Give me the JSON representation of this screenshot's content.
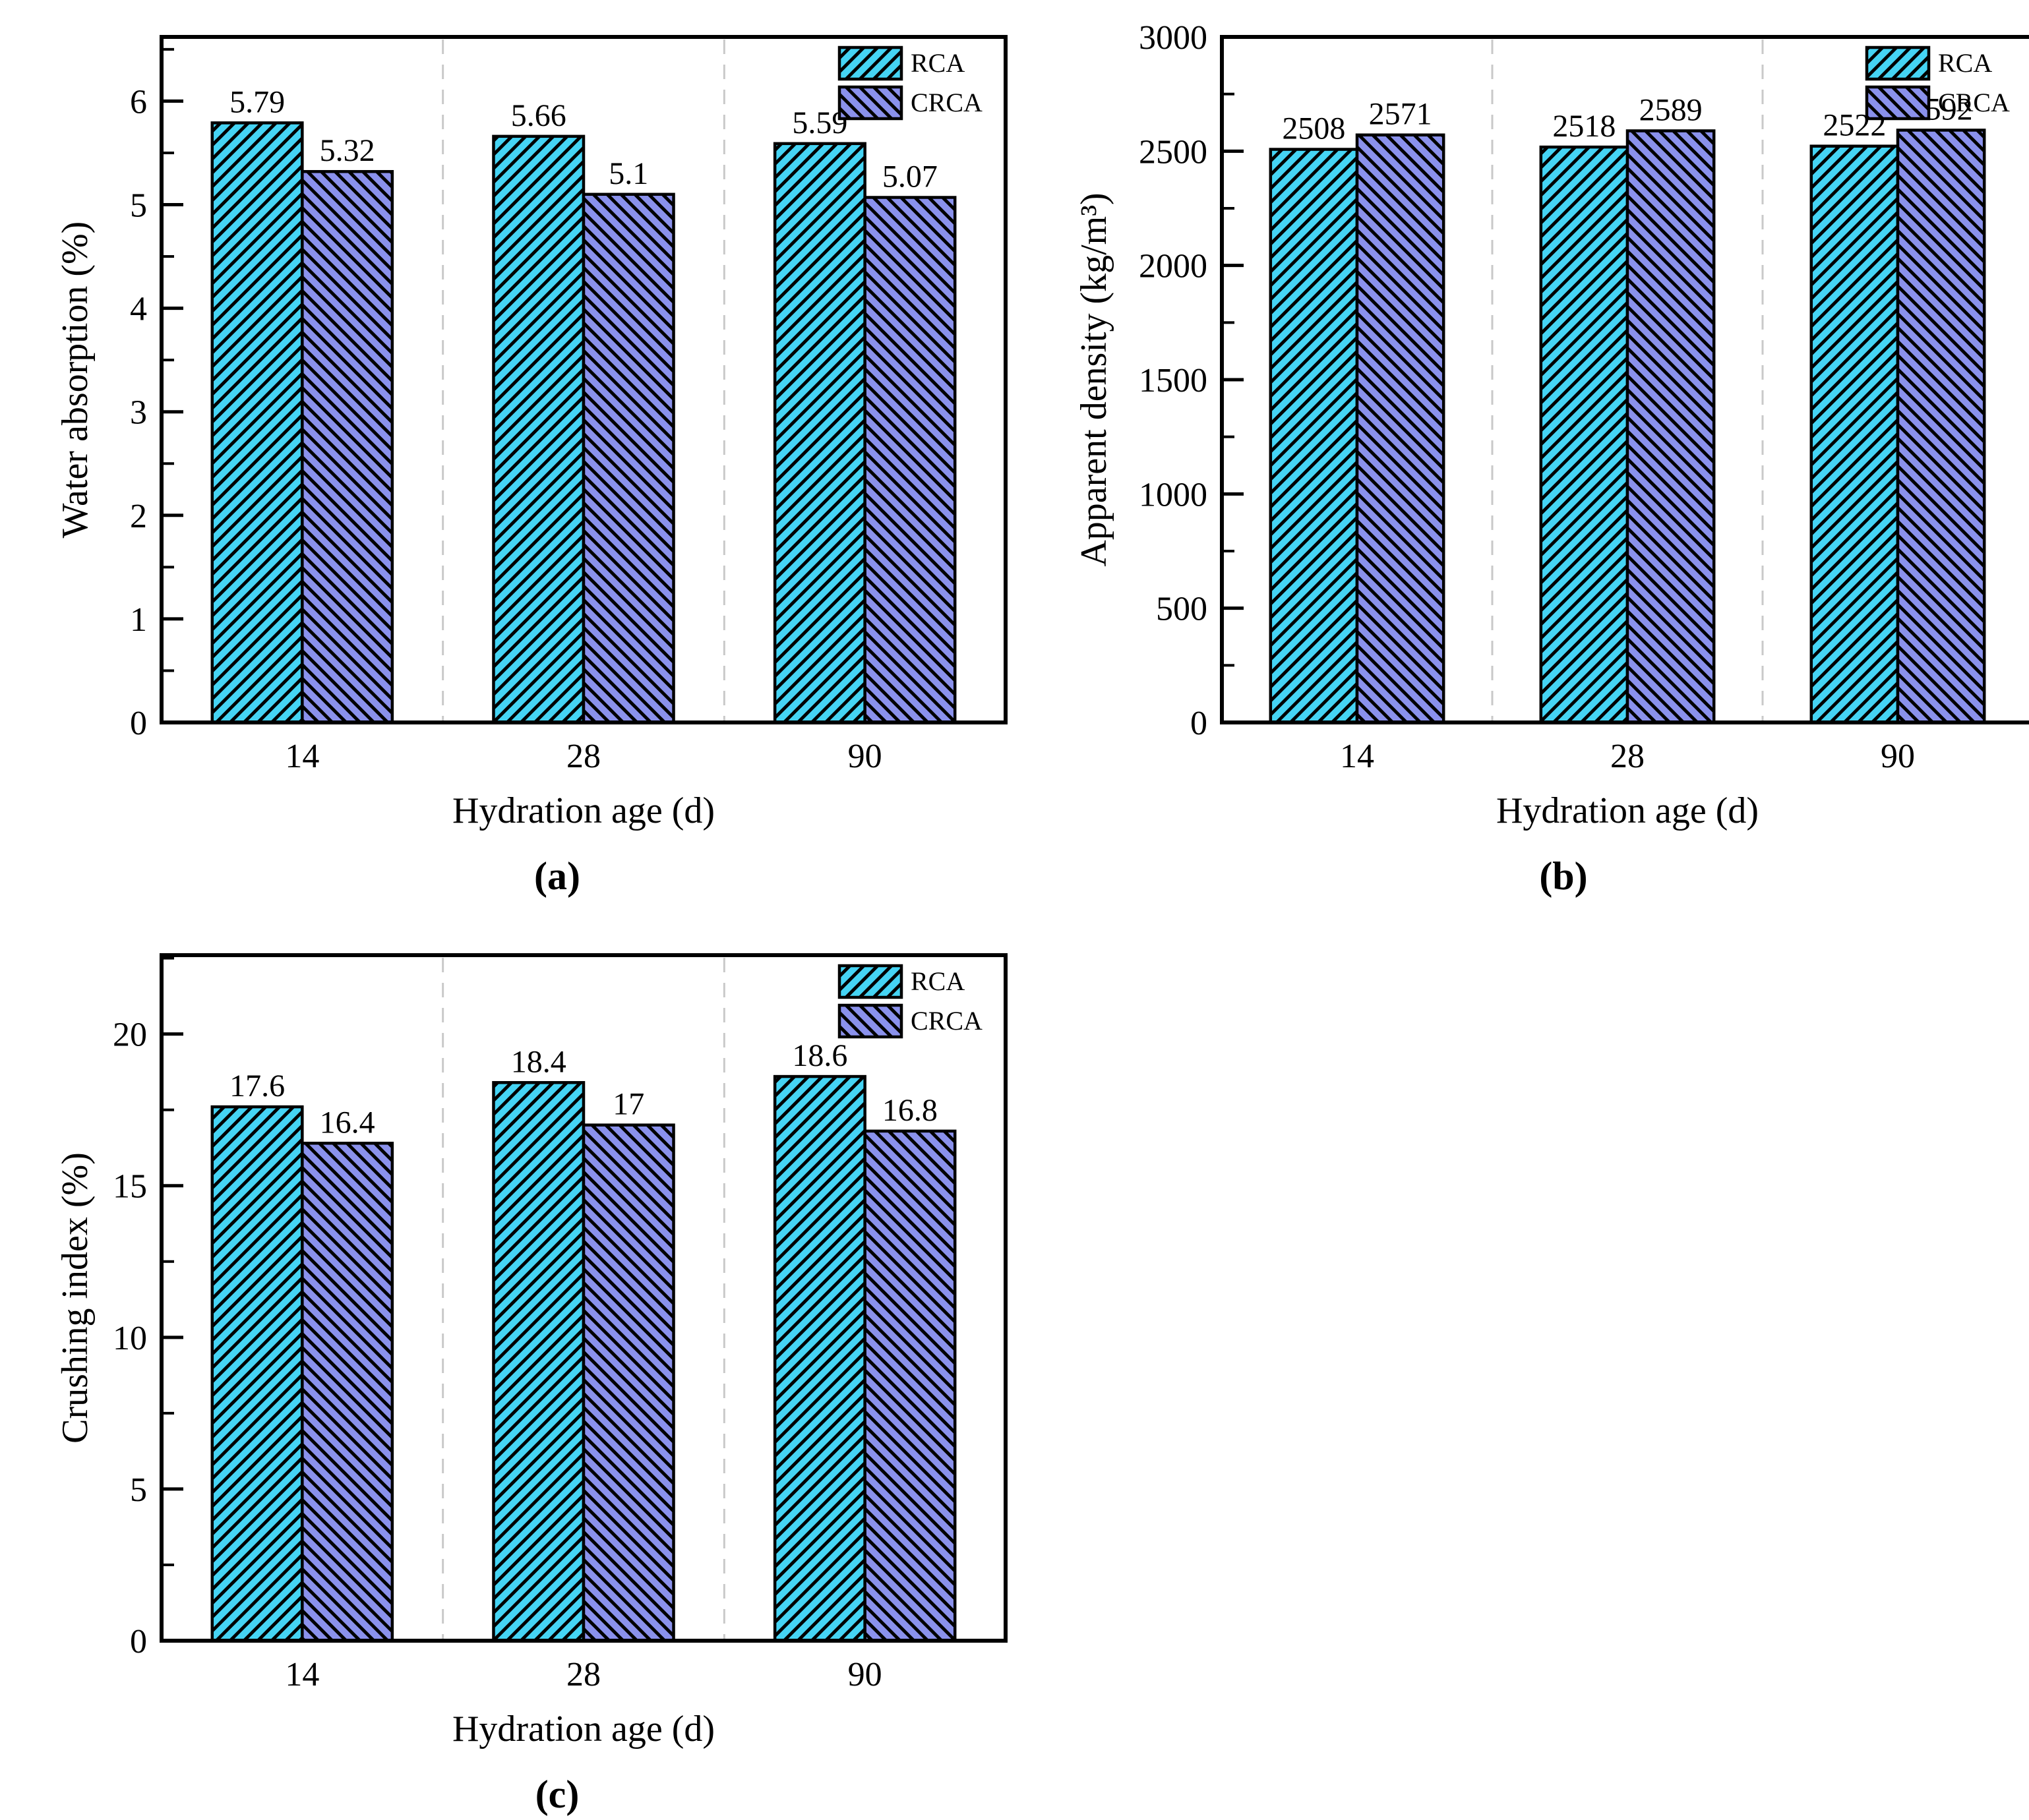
{
  "figure": {
    "background_color": "#FFFFFF",
    "series_colors": {
      "RCA": "#45D4F4",
      "CRCA": "#8A91EC"
    },
    "bar_edge_color": "#000000",
    "separator_color": "#C9C9C9",
    "separator_style": "dashed",
    "legend_position": "top-right"
  },
  "chart_data": [
    {
      "id": "water-absorption",
      "panel_label": "(a)",
      "type": "bar",
      "categories": [
        "14",
        "28",
        "90"
      ],
      "series": [
        {
          "name": "RCA",
          "values": [
            5.79,
            5.66,
            5.59
          ],
          "labels": [
            "5.79",
            "5.66",
            "5.59"
          ],
          "color": "#45D4F4",
          "hatch": "forward-diagonal"
        },
        {
          "name": "CRCA",
          "values": [
            5.32,
            5.1,
            5.07
          ],
          "labels": [
            "5.32",
            "5.1",
            "5.07"
          ],
          "color": "#8A91EC",
          "hatch": "backward-diagonal"
        }
      ],
      "xlabel": "Hydration age（d）",
      "ylabel": "Water absorption（%）",
      "ylim": [
        0,
        6.62
      ],
      "yticks": [
        0,
        1,
        2,
        3,
        4,
        5,
        6
      ],
      "yminor_step": 0.5,
      "legend": [
        "RCA",
        "CRCA"
      ],
      "legend_position": "top-right",
      "grid": "dashed-vertical-separators"
    },
    {
      "id": "apparent-density",
      "panel_label": "(b)",
      "type": "bar",
      "categories": [
        "14",
        "28",
        "90"
      ],
      "series": [
        {
          "name": "RCA",
          "values": [
            2508,
            2518,
            2522
          ],
          "labels": [
            "2508",
            "2518",
            "2522"
          ],
          "color": "#45D4F4",
          "hatch": "forward-diagonal"
        },
        {
          "name": "CRCA",
          "values": [
            2571,
            2589,
            2592
          ],
          "labels": [
            "2571",
            "2589",
            "2592"
          ],
          "color": "#8A91EC",
          "hatch": "backward-diagonal"
        }
      ],
      "xlabel": "Hydration age（d）",
      "ylabel": "Apparent density（kg/m³）",
      "ylim": [
        0,
        3000
      ],
      "yticks": [
        0,
        500,
        1000,
        1500,
        2000,
        2500,
        3000
      ],
      "yminor_step": 250,
      "legend": [
        "RCA",
        "CRCA"
      ],
      "legend_position": "top-right",
      "grid": "dashed-vertical-separators"
    },
    {
      "id": "crushing-index",
      "panel_label": "(c)",
      "type": "bar",
      "categories": [
        "14",
        "28",
        "90"
      ],
      "series": [
        {
          "name": "RCA",
          "values": [
            17.6,
            18.4,
            18.6
          ],
          "labels": [
            "17.6",
            "18.4",
            "18.6"
          ],
          "color": "#45D4F4",
          "hatch": "forward-diagonal"
        },
        {
          "name": "CRCA",
          "values": [
            16.4,
            17.0,
            16.8
          ],
          "labels": [
            "16.4",
            "17",
            "16.8"
          ],
          "color": "#8A91EC",
          "hatch": "backward-diagonal"
        }
      ],
      "xlabel": "Hydration age（d）",
      "ylabel": "Crushing index（%）",
      "ylim": [
        0,
        22.6
      ],
      "yticks": [
        0,
        5,
        10,
        15,
        20
      ],
      "yminor_step": 2.5,
      "legend": [
        "RCA",
        "CRCA"
      ],
      "legend_position": "top-right",
      "grid": "dashed-vertical-separators"
    }
  ]
}
